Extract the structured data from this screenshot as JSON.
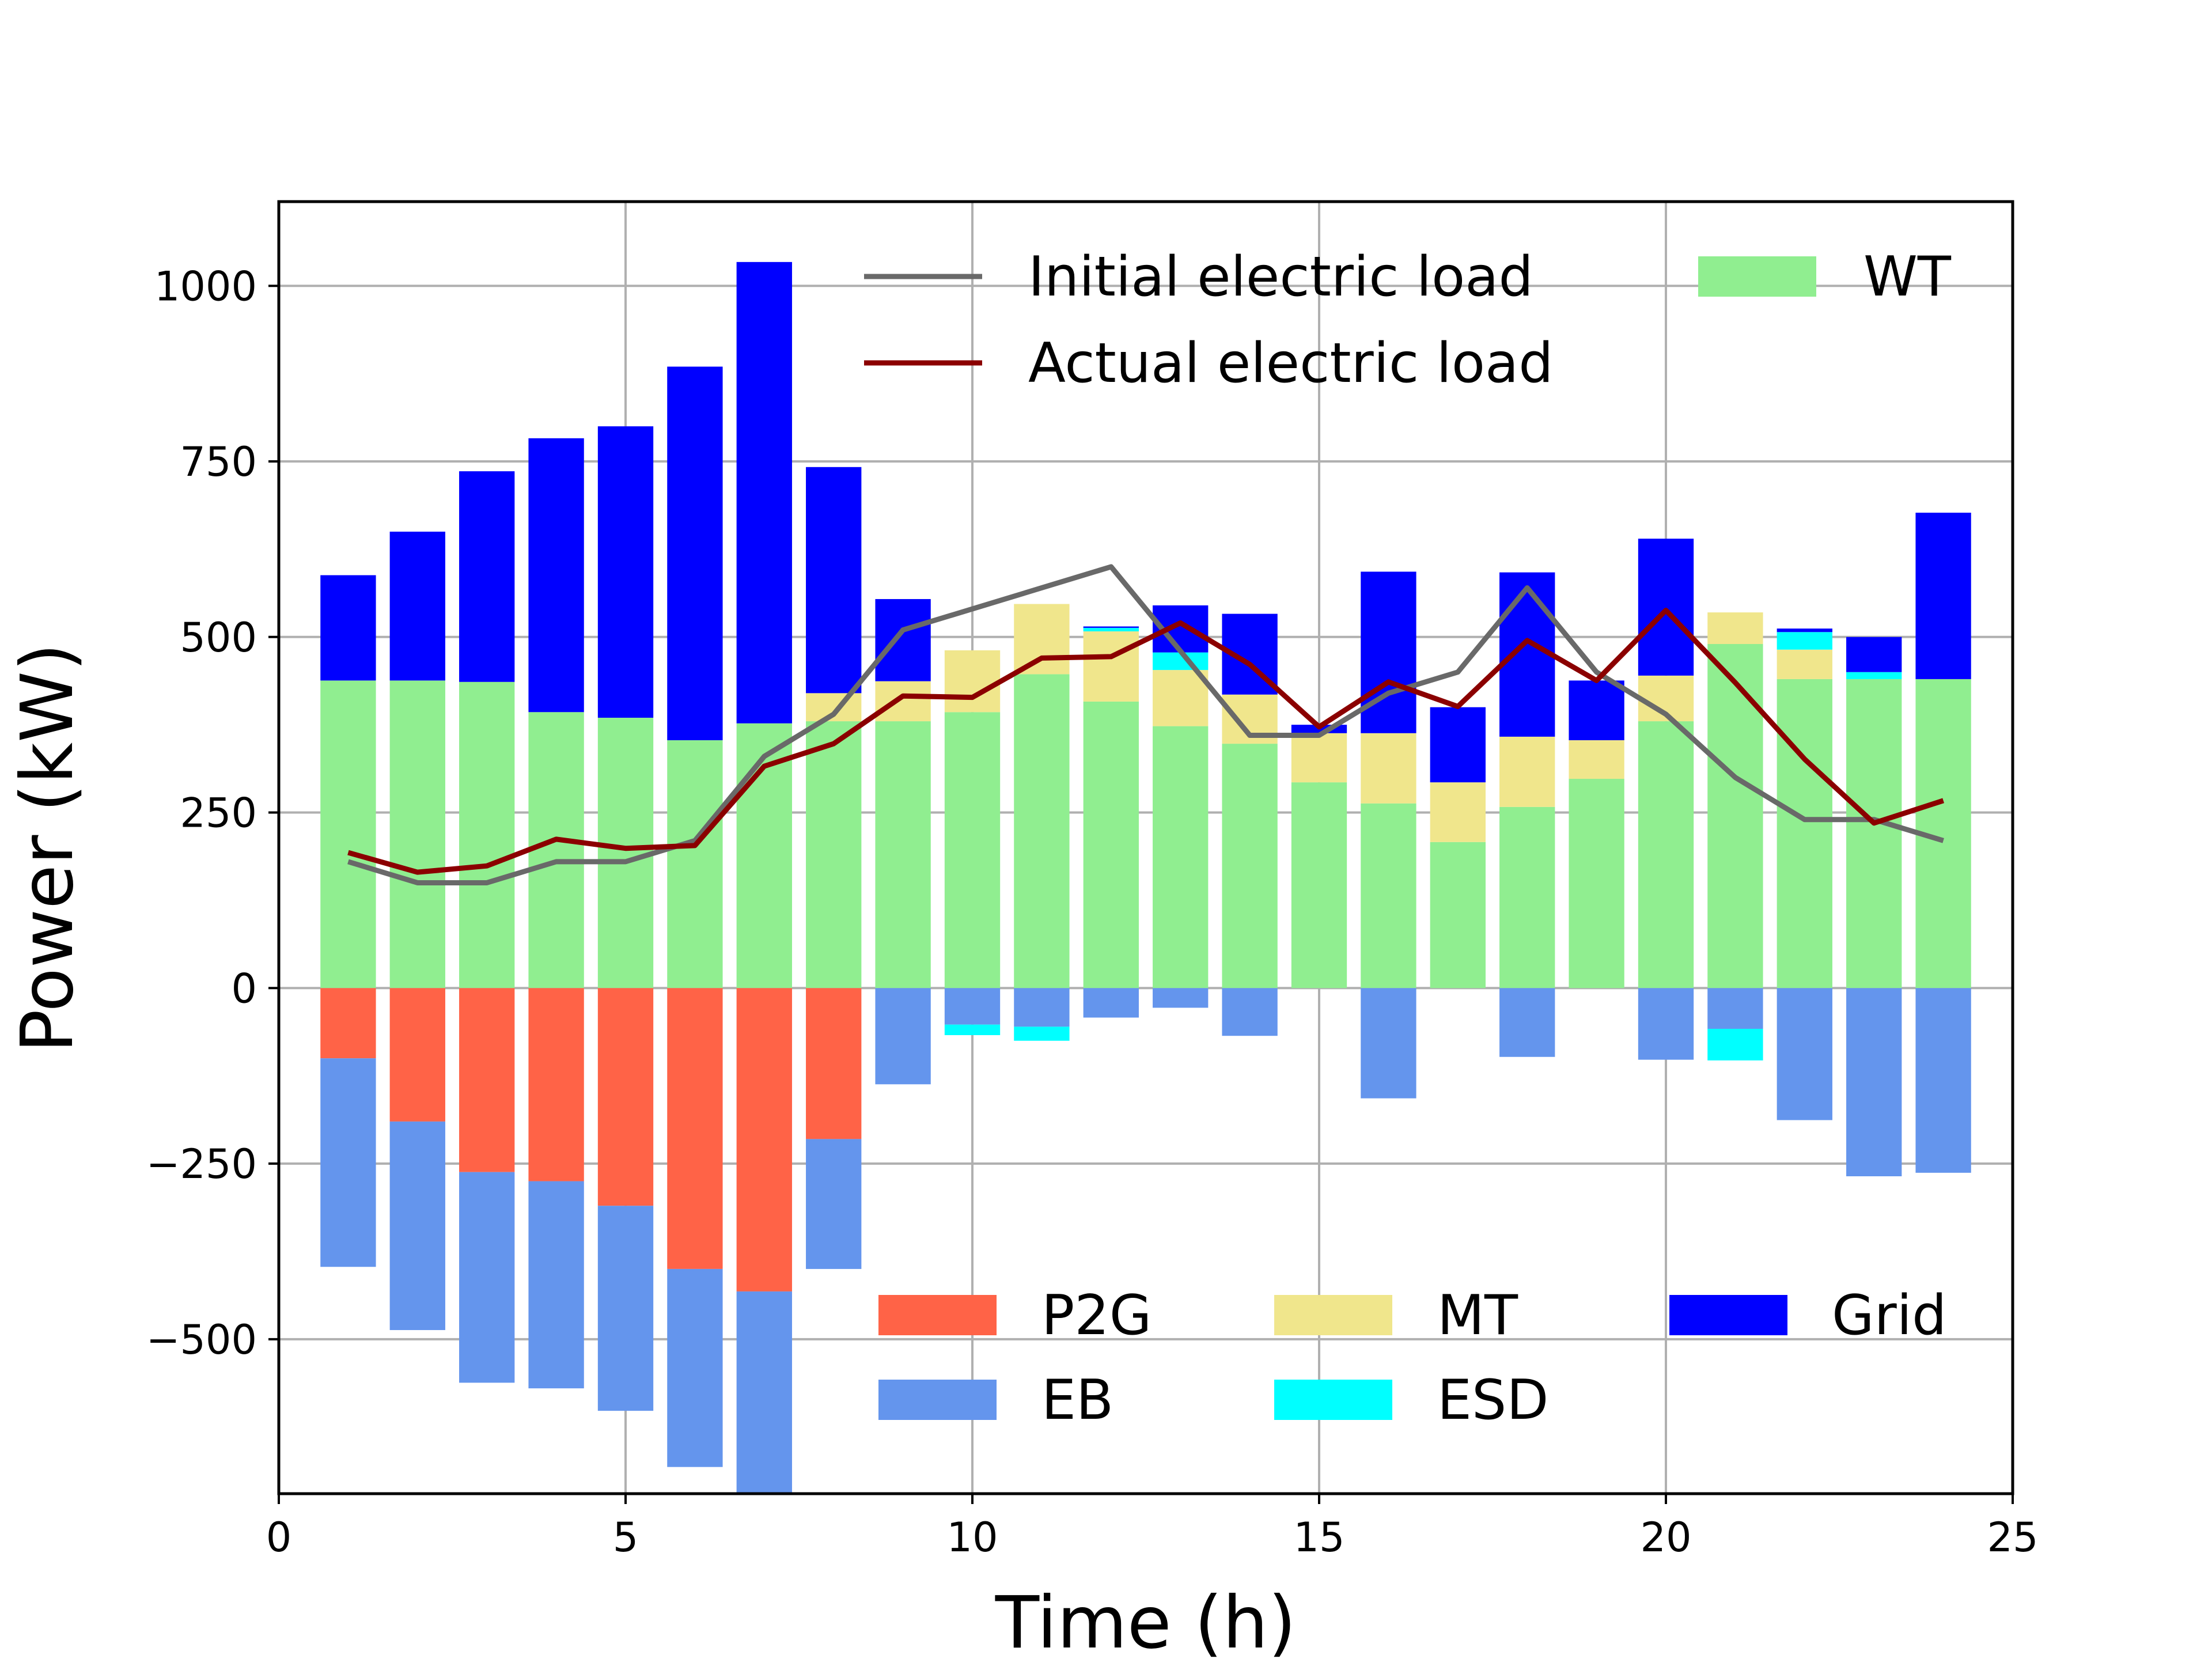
{
  "chart_data": {
    "type": "bar",
    "stacked": true,
    "xlabel": "Time (h)",
    "ylabel": "Power (kW)",
    "xlim": [
      0,
      25
    ],
    "ylim": [
      -720,
      1120
    ],
    "xticks": [
      0,
      5,
      10,
      15,
      20,
      25
    ],
    "xtick_labels": [
      "0",
      "5",
      "10",
      "15",
      "20",
      "25"
    ],
    "yticks": [
      1000,
      750,
      500,
      250,
      0,
      -250,
      -500
    ],
    "ytick_labels": [
      "1000",
      "750",
      "500",
      "250",
      "0",
      "−250",
      "−500"
    ],
    "grid": true,
    "x": [
      1,
      2,
      3,
      4,
      5,
      6,
      7,
      8,
      9,
      10,
      11,
      12,
      13,
      14,
      15,
      16,
      17,
      18,
      19,
      20,
      21,
      22,
      23,
      24
    ],
    "positive_series": [
      {
        "name": "WT",
        "color": "#90ee90",
        "values": [
          438,
          438,
          436,
          393,
          385,
          353,
          377,
          380,
          380,
          393,
          447,
          408,
          373,
          348,
          293,
          263,
          208,
          258,
          298,
          380,
          490,
          440,
          440,
          440
        ]
      },
      {
        "name": "MT",
        "color": "#f0e68c",
        "values": [
          0,
          0,
          0,
          0,
          0,
          0,
          0,
          40,
          57,
          88,
          100,
          100,
          80,
          70,
          70,
          100,
          85,
          100,
          55,
          65,
          45,
          42,
          0,
          0
        ]
      },
      {
        "name": "ESD",
        "color": "#00ffff",
        "values": [
          0,
          0,
          0,
          0,
          0,
          0,
          0,
          0,
          0,
          0,
          0,
          5,
          25,
          0,
          0,
          0,
          0,
          0,
          0,
          0,
          0,
          25,
          10,
          0
        ]
      },
      {
        "name": "Grid",
        "color": "#0000ff",
        "values": [
          150,
          212,
          300,
          390,
          415,
          532,
          657,
          322,
          117,
          0,
          0,
          2,
          67,
          115,
          12,
          230,
          107,
          234,
          85,
          195,
          0,
          5,
          50,
          237
        ]
      }
    ],
    "negative_series": [
      {
        "name": "P2G",
        "color": "#ff6347",
        "values": [
          -100,
          -190,
          -262,
          -275,
          -310,
          -400,
          -432,
          -215,
          0,
          0,
          0,
          0,
          0,
          0,
          0,
          0,
          0,
          0,
          0,
          0,
          0,
          0,
          0,
          0
        ]
      },
      {
        "name": "EB",
        "color": "#6495ed",
        "values": [
          -297,
          -297,
          -300,
          -295,
          -292,
          -282,
          -288,
          -185,
          -137,
          -52,
          -55,
          -42,
          -28,
          -68,
          0,
          -157,
          0,
          -98,
          0,
          -102,
          -58,
          -188,
          -268,
          -263
        ]
      },
      {
        "name": "ESD",
        "color": "#00ffff",
        "values": [
          0,
          0,
          0,
          0,
          0,
          0,
          0,
          0,
          0,
          -15,
          -20,
          0,
          0,
          0,
          0,
          0,
          0,
          0,
          0,
          0,
          -45,
          0,
          0,
          0
        ]
      }
    ],
    "lines": [
      {
        "name": "Initial electric load",
        "color": "#696969",
        "values": [
          180,
          150,
          150,
          180,
          180,
          210,
          330,
          390,
          510,
          540,
          570,
          600,
          480,
          360,
          360,
          420,
          450,
          570,
          450,
          390,
          300,
          240,
          240,
          210
        ]
      },
      {
        "name": "Actual electric load",
        "color": "#8b0000",
        "values": [
          193,
          165,
          174,
          212,
          199,
          203,
          316,
          348,
          416,
          414,
          470,
          472,
          520,
          461,
          372,
          436,
          401,
          495,
          438,
          538,
          435,
          326,
          235,
          267
        ]
      }
    ],
    "legends": [
      {
        "placement": "top",
        "entries": [
          {
            "label": "Initial electric load",
            "kind": "line",
            "color": "#696969"
          },
          {
            "label": "Actual electric load",
            "kind": "line",
            "color": "#8b0000"
          },
          {
            "label": "WT",
            "kind": "patch",
            "color": "#90ee90"
          }
        ]
      },
      {
        "placement": "bottom-right",
        "entries": [
          {
            "label": "P2G",
            "kind": "patch",
            "color": "#ff6347"
          },
          {
            "label": "EB",
            "kind": "patch",
            "color": "#6495ed"
          },
          {
            "label": "MT",
            "kind": "patch",
            "color": "#f0e68c"
          },
          {
            "label": "ESD",
            "kind": "patch",
            "color": "#00ffff"
          },
          {
            "label": "Grid",
            "kind": "patch",
            "color": "#0000ff"
          }
        ]
      }
    ]
  }
}
